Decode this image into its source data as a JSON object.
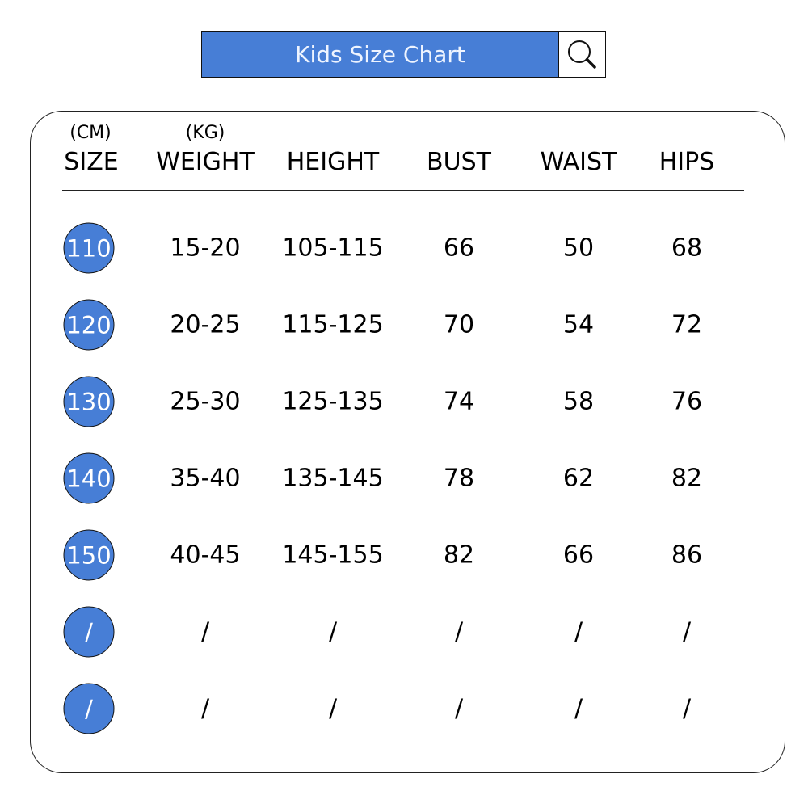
{
  "header": {
    "title": "Kids Size Chart",
    "search_icon": "magnifier-icon"
  },
  "colors": {
    "accent": "#477ed6"
  },
  "columns": [
    {
      "unit": "(CM)",
      "label": "SIZE"
    },
    {
      "unit": "(KG)",
      "label": "WEIGHT"
    },
    {
      "unit": "",
      "label": "HEIGHT"
    },
    {
      "unit": "",
      "label": "BUST"
    },
    {
      "unit": "",
      "label": "WAIST"
    },
    {
      "unit": "",
      "label": "HIPS"
    }
  ],
  "rows": [
    [
      "110",
      "15-20",
      "105-115",
      "66",
      "50",
      "68"
    ],
    [
      "120",
      "20-25",
      "115-125",
      "70",
      "54",
      "72"
    ],
    [
      "130",
      "25-30",
      "125-135",
      "74",
      "58",
      "76"
    ],
    [
      "140",
      "35-40",
      "135-145",
      "78",
      "62",
      "82"
    ],
    [
      "150",
      "40-45",
      "145-155",
      "82",
      "66",
      "86"
    ],
    [
      "/",
      "/",
      "/",
      "/",
      "/",
      "/"
    ],
    [
      "/",
      "/",
      "/",
      "/",
      "/",
      "/"
    ]
  ]
}
